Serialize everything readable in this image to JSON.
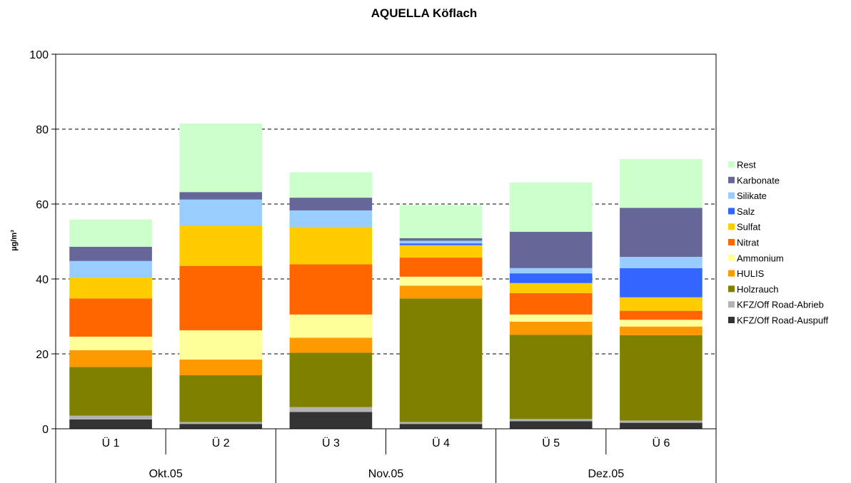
{
  "chart_data": {
    "type": "bar",
    "stacked": true,
    "title": "AQUELLA Köflach",
    "xlabel": "",
    "ylabel": "µg/m³",
    "ylim": [
      0,
      100
    ],
    "yticks": [
      0,
      20,
      40,
      60,
      80,
      100
    ],
    "grid": "horizontal dashed",
    "legend_position": "right",
    "categories": [
      "Ü 1",
      "Ü 2",
      "Ü 3",
      "Ü 4",
      "Ü 5",
      "Ü 6"
    ],
    "groups": [
      {
        "label": "Okt.05",
        "categories": [
          "Ü 1",
          "Ü 2"
        ]
      },
      {
        "label": "Nov.05",
        "categories": [
          "Ü 3",
          "Ü 4"
        ]
      },
      {
        "label": "Dez.05",
        "categories": [
          "Ü 5",
          "Ü 6"
        ]
      }
    ],
    "series": [
      {
        "name": "KFZ/Off Road-Auspuff",
        "color": "#333333",
        "values": [
          2.5,
          1.3,
          4.5,
          1.3,
          2.0,
          1.6
        ]
      },
      {
        "name": "KFZ/Off Road-Abrieb",
        "color": "#b3b3b3",
        "values": [
          1.0,
          0.5,
          1.3,
          0.5,
          0.6,
          0.6
        ]
      },
      {
        "name": "Holzrauch",
        "color": "#808000",
        "values": [
          13.0,
          12.5,
          14.5,
          33.0,
          22.5,
          22.8
        ]
      },
      {
        "name": "HULIS",
        "color": "#ff9900",
        "values": [
          4.5,
          4.2,
          4.0,
          3.4,
          3.5,
          2.3
        ]
      },
      {
        "name": "Ammonium",
        "color": "#ffff99",
        "values": [
          3.6,
          7.8,
          6.2,
          2.4,
          1.9,
          1.8
        ]
      },
      {
        "name": "Nitrat",
        "color": "#ff6600",
        "values": [
          10.2,
          17.2,
          13.4,
          5.1,
          5.7,
          2.4
        ]
      },
      {
        "name": "Sulfat",
        "color": "#ffcc00",
        "values": [
          5.6,
          10.8,
          10.0,
          3.3,
          2.7,
          3.6
        ]
      },
      {
        "name": "Salz",
        "color": "#3366ff",
        "values": [
          0,
          0,
          0,
          0.5,
          2.6,
          7.8
        ]
      },
      {
        "name": "Silikate",
        "color": "#99ccff",
        "values": [
          4.4,
          6.9,
          4.4,
          0.7,
          1.4,
          3.0
        ]
      },
      {
        "name": "Karbonate",
        "color": "#666699",
        "values": [
          3.8,
          2.0,
          3.4,
          0.7,
          9.7,
          13.1
        ]
      },
      {
        "name": "Rest",
        "color": "#ccffcc",
        "values": [
          7.3,
          18.3,
          6.8,
          8.8,
          13.2,
          13.0
        ]
      }
    ]
  }
}
